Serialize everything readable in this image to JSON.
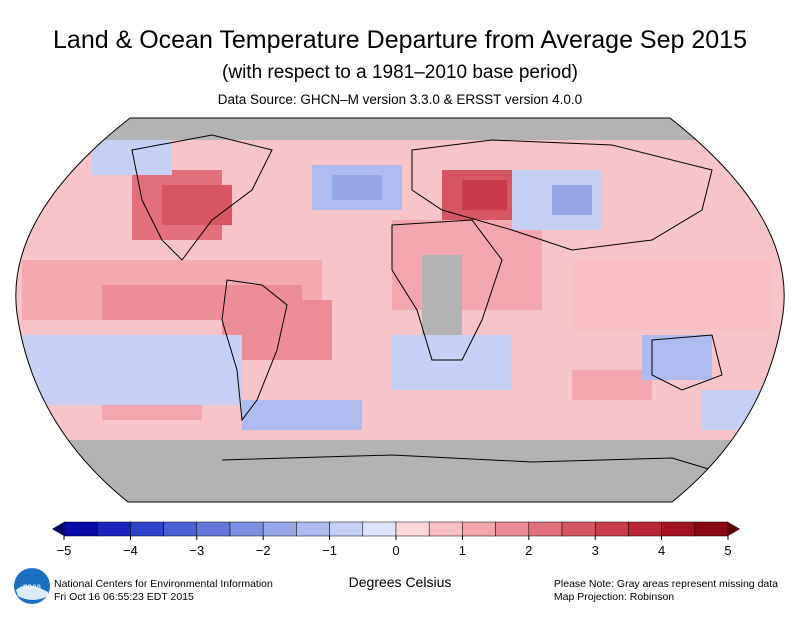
{
  "title": "Land & Ocean Temperature Departure from Average Sep 2015",
  "subtitle": "(with respect to a 1981–2010 base period)",
  "source": "Data Source: GHCN–M version 3.3.0 & ERSST version 4.0.0",
  "colorbar": {
    "label": "Degrees Celsius",
    "ticks": [
      "−5",
      "−4",
      "−3",
      "−2",
      "−1",
      "0",
      "1",
      "2",
      "3",
      "4",
      "5"
    ],
    "min": -5,
    "max": 5,
    "step": 0.5,
    "colors": [
      "#0a0aa8",
      "#1a23be",
      "#2f44cc",
      "#4a60d4",
      "#6478db",
      "#7d8fe1",
      "#96a6e7",
      "#aebbee",
      "#c6cff4",
      "#dde3f9",
      "#fcd8dc",
      "#f8bfc5",
      "#f3a6ae",
      "#ec8c96",
      "#e3717d",
      "#d75663",
      "#c93d4b",
      "#b82534",
      "#a2131f",
      "#8a0812"
    ],
    "low_arrow_color": "#000060",
    "high_arrow_color": "#5a0005"
  },
  "map": {
    "projection_label": "Map Projection: Robinson",
    "missing_color": "#b3b3b3",
    "ocean_base_color": "#f7c4c9",
    "land_outline_color": "#000000"
  },
  "footer": {
    "org": "National Centers for Environmental Information",
    "timestamp": "Fri Oct 16 06:55:23 EDT 2015",
    "note": "Please Note: Gray areas represent missing data",
    "projection": "Map Projection: Robinson",
    "logo_text": "noaa",
    "logo_icon": "noaa-logo-icon"
  }
}
